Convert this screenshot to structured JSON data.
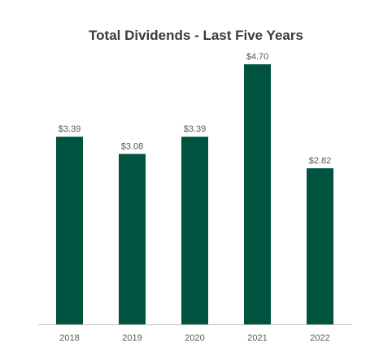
{
  "chart_data": {
    "type": "bar",
    "title": "Total Dividends - Last Five Years",
    "categories": [
      "2018",
      "2019",
      "2020",
      "2021",
      "2022"
    ],
    "values": [
      3.39,
      3.08,
      3.39,
      4.7,
      2.82
    ],
    "data_labels": [
      "$3.39",
      "$3.08",
      "$3.39",
      "$4.70",
      "$2.82"
    ],
    "xlabel": "",
    "ylabel": "",
    "ylim": [
      0,
      5.45
    ],
    "grid": false,
    "legend": "none",
    "bar_color": "#00533f",
    "axis_color": "#bfbfbf"
  }
}
